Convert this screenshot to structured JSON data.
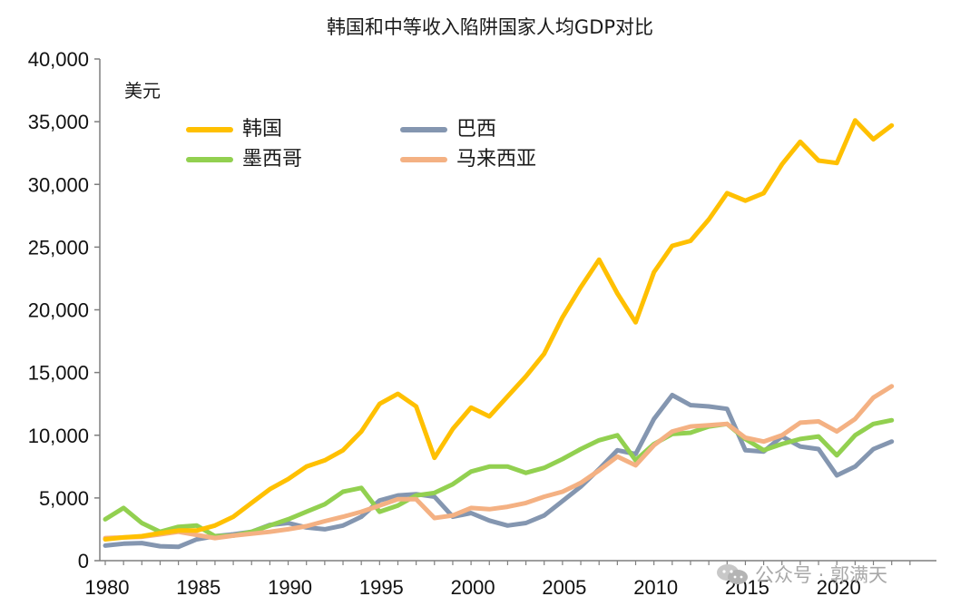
{
  "chart_data": {
    "type": "line",
    "title": "韩国和中等收入陷阱国家人均GDP对比",
    "ylabel": "美元",
    "ylim": [
      0,
      40000
    ],
    "yticks": [
      "0",
      "5,000",
      "10,000",
      "15,000",
      "20,000",
      "25,000",
      "30,000",
      "35,000",
      "40,000"
    ],
    "ytick_values": [
      0,
      5000,
      10000,
      15000,
      20000,
      25000,
      30000,
      35000,
      40000
    ],
    "xlim": [
      1980,
      2023
    ],
    "xticks": [
      "1980",
      "1985",
      "1990",
      "1995",
      "2000",
      "2005",
      "2010",
      "2015",
      "2020"
    ],
    "xtick_values": [
      1980,
      1985,
      1990,
      1995,
      2000,
      2005,
      2010,
      2015,
      2020
    ],
    "grid": false,
    "legend_position": "top-left",
    "x": [
      1980,
      1981,
      1982,
      1983,
      1984,
      1985,
      1986,
      1987,
      1988,
      1989,
      1990,
      1991,
      1992,
      1993,
      1994,
      1995,
      1996,
      1997,
      1998,
      1999,
      2000,
      2001,
      2002,
      2003,
      2004,
      2005,
      2006,
      2007,
      2008,
      2009,
      2010,
      2011,
      2012,
      2013,
      2014,
      2015,
      2016,
      2017,
      2018,
      2019,
      2020,
      2021,
      2022,
      2023
    ],
    "series": [
      {
        "name": "韩国",
        "color": "#FFC000",
        "values": [
          1700,
          1850,
          1950,
          2200,
          2400,
          2400,
          2800,
          3500,
          4600,
          5700,
          6500,
          7500,
          8000,
          8800,
          10300,
          12500,
          13300,
          12300,
          8200,
          10500,
          12200,
          11500,
          13100,
          14700,
          16500,
          19400,
          21800,
          24000,
          21300,
          19000,
          23000,
          25100,
          25500,
          27200,
          29300,
          28700,
          29300,
          31600,
          33400,
          31900,
          31700,
          35100,
          33600,
          34700
        ]
      },
      {
        "name": "巴西",
        "color": "#8496B0",
        "values": [
          1200,
          1350,
          1400,
          1150,
          1100,
          1700,
          1950,
          2100,
          2300,
          2850,
          3000,
          2650,
          2500,
          2800,
          3500,
          4800,
          5200,
          5300,
          5100,
          3500,
          3800,
          3200,
          2800,
          3000,
          3600,
          4750,
          5900,
          7300,
          8800,
          8500,
          11300,
          13200,
          12400,
          12300,
          12100,
          8800,
          8700,
          9900,
          9100,
          8900,
          6800,
          7500,
          8900,
          9500
        ]
      },
      {
        "name": "墨西哥",
        "color": "#92D050",
        "values": [
          3300,
          4200,
          3000,
          2300,
          2700,
          2800,
          1950,
          2000,
          2300,
          2800,
          3300,
          3900,
          4500,
          5500,
          5800,
          3900,
          4400,
          5200,
          5400,
          6100,
          7100,
          7500,
          7500,
          7000,
          7400,
          8100,
          8900,
          9600,
          10000,
          8000,
          9300,
          10100,
          10200,
          10700,
          10900,
          9700,
          8800,
          9300,
          9700,
          9900,
          8400,
          10000,
          10900,
          11200
        ]
      },
      {
        "name": "马来西亚",
        "color": "#F4B183",
        "values": [
          1800,
          1850,
          1900,
          2100,
          2300,
          2050,
          1800,
          2000,
          2150,
          2300,
          2500,
          2750,
          3150,
          3500,
          3900,
          4400,
          4900,
          4900,
          3400,
          3600,
          4200,
          4100,
          4300,
          4600,
          5100,
          5500,
          6200,
          7200,
          8300,
          7600,
          9200,
          10300,
          10700,
          10800,
          10900,
          9800,
          9500,
          10000,
          11000,
          11100,
          10300,
          11300,
          13000,
          13900
        ]
      }
    ]
  },
  "watermark": {
    "text": "公众号 · 郭满天",
    "icon": "wechat-icon"
  }
}
